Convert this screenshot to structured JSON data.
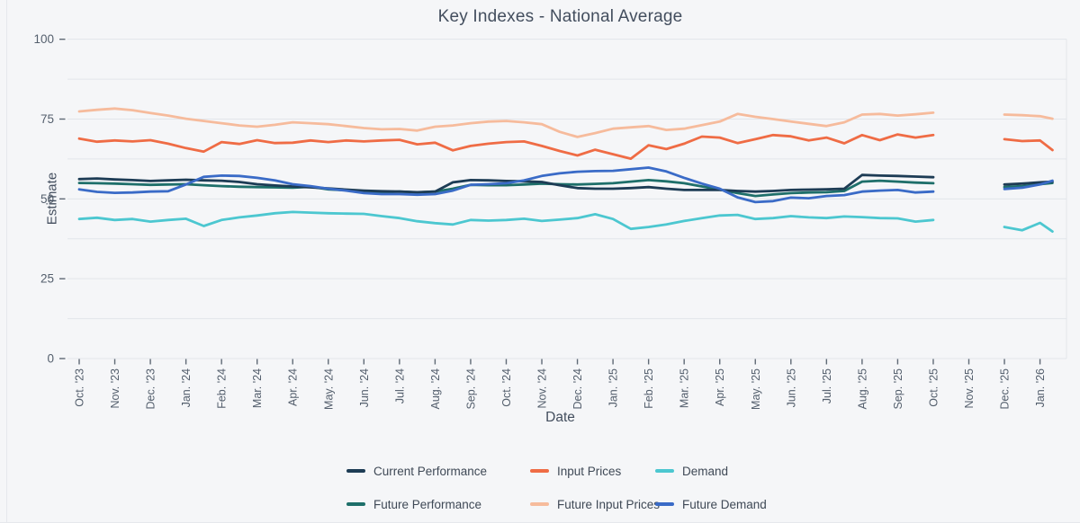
{
  "title": "Key Indexes - National Average",
  "axes": {
    "y_label": "Estimate",
    "x_label": "Date",
    "y_ticks": [
      0,
      25,
      50,
      75,
      100
    ],
    "y_minor_gridline_step": 12.5,
    "ylim": [
      0,
      100
    ],
    "x_tick_labels": [
      "Oct. '23",
      "Nov. '23",
      "Dec. '23",
      "Jan. '24",
      "Feb. '24",
      "Mar. '24",
      "Apr. '24",
      "May. '24",
      "Jun. '24",
      "Jul. '24",
      "Aug. '24",
      "Sep. '24",
      "Oct. '24",
      "Nov. '24",
      "Dec. '24",
      "Jan. '25",
      "Feb. '25",
      "Mar. '25",
      "Apr. '25",
      "May. '25",
      "Jun. '25",
      "Jul. '25",
      "Aug. '25",
      "Sep. '25",
      "Oct. '25",
      "Nov. '25",
      "Dec. '25",
      "Jan. '26"
    ]
  },
  "legend": {
    "rows": [
      [
        "current_performance",
        "input_prices",
        "demand"
      ],
      [
        "future_performance",
        "future_input_prices",
        "future_demand"
      ]
    ]
  },
  "colors": {
    "background": "#f5f6f8",
    "gridline": "#e2e5ea",
    "tick": "#5f6975",
    "axis_text": "#545f6d",
    "title_text": "#434e5e",
    "legend_text": "#3f4956"
  },
  "chart_data": {
    "type": "line",
    "title": "Key Indexes - National Average",
    "xlabel": "Date",
    "ylabel": "Estimate",
    "ylim": [
      0,
      100
    ],
    "grid": true,
    "legend_position": "bottom",
    "x_unit": "months since Oct. '23 (half-month sampling)",
    "gap_note": "no data around Nov. '25 — lines break between Oct. '25 and Dec. '25",
    "x_main": [
      0,
      0.5,
      1,
      1.5,
      2,
      2.5,
      3,
      3.5,
      4,
      4.5,
      5,
      5.5,
      6,
      6.5,
      7,
      7.5,
      8,
      8.5,
      9,
      9.5,
      10,
      10.5,
      11,
      11.5,
      12,
      12.5,
      13,
      13.5,
      14,
      14.5,
      15,
      15.5,
      16,
      16.5,
      17,
      17.5,
      18,
      18.5,
      19,
      19.5,
      20,
      20.5,
      21,
      21.5,
      22,
      22.5,
      23,
      23.5,
      24
    ],
    "x_tail": [
      26,
      26.5,
      27,
      27.35
    ],
    "series": [
      {
        "id": "future_input_prices",
        "name": "Future Input Prices",
        "color": "#f6bb9c",
        "main": [
          77.4,
          77.9,
          78.3,
          77.8,
          76.9,
          76.1,
          75.1,
          74.4,
          73.7,
          73.0,
          72.6,
          73.2,
          74.0,
          73.7,
          73.4,
          72.8,
          72.2,
          71.8,
          71.9,
          71.4,
          72.6,
          73.0,
          73.7,
          74.2,
          74.4,
          74.0,
          73.4,
          71.0,
          69.4,
          70.6,
          72.0,
          72.4,
          72.8,
          71.6,
          72.0,
          73.1,
          74.2,
          76.6,
          75.7,
          75.0,
          74.2,
          73.5,
          72.8,
          74.0,
          76.4,
          76.6,
          76.1,
          76.5,
          77.0
        ],
        "tail": [
          76.4,
          76.2,
          75.9,
          75.1
        ]
      },
      {
        "id": "input_prices",
        "name": "Input Prices",
        "color": "#ef6c45",
        "main": [
          68.9,
          67.9,
          68.3,
          68.0,
          68.4,
          67.3,
          65.9,
          64.8,
          67.8,
          67.2,
          68.4,
          67.5,
          67.6,
          68.3,
          67.8,
          68.3,
          68.0,
          68.3,
          68.5,
          67.1,
          67.6,
          65.2,
          66.6,
          67.3,
          67.8,
          68.0,
          66.6,
          65.0,
          63.6,
          65.4,
          64.0,
          62.6,
          66.8,
          65.6,
          67.3,
          69.5,
          69.2,
          67.5,
          68.7,
          70.0,
          69.6,
          68.3,
          69.2,
          67.4,
          70.0,
          68.4,
          70.2,
          69.2,
          70.0
        ],
        "tail": [
          68.7,
          68.1,
          68.3,
          65.3
        ]
      },
      {
        "id": "demand",
        "name": "Demand",
        "color": "#4cc7d0",
        "main": [
          43.7,
          44.1,
          43.4,
          43.7,
          42.9,
          43.4,
          43.8,
          41.5,
          43.4,
          44.2,
          44.8,
          45.5,
          45.9,
          45.7,
          45.5,
          45.4,
          45.3,
          44.6,
          44.0,
          43.0,
          42.4,
          42.0,
          43.4,
          43.2,
          43.4,
          43.8,
          43.1,
          43.5,
          44.0,
          45.2,
          43.7,
          40.6,
          41.2,
          42.0,
          43.1,
          44.0,
          44.8,
          45.0,
          43.7,
          44.0,
          44.6,
          44.2,
          44.0,
          44.5,
          44.3,
          44.0,
          43.9,
          42.9,
          43.4
        ],
        "tail": [
          41.2,
          40.2,
          42.5,
          39.8
        ]
      },
      {
        "id": "future_performance",
        "name": "Future Performance",
        "color": "#1e6f6a",
        "main": [
          55.0,
          54.9,
          54.8,
          54.6,
          54.4,
          54.5,
          54.6,
          54.3,
          54.0,
          53.8,
          53.7,
          53.6,
          53.5,
          53.8,
          53.0,
          52.7,
          52.4,
          52.0,
          52.3,
          52.0,
          52.3,
          53.2,
          54.4,
          54.3,
          54.3,
          54.5,
          54.8,
          54.6,
          54.5,
          54.7,
          54.9,
          55.4,
          55.9,
          55.5,
          54.9,
          53.9,
          52.9,
          51.8,
          50.9,
          51.4,
          51.8,
          52.0,
          52.1,
          52.5,
          55.4,
          55.7,
          55.4,
          55.1,
          54.9
        ],
        "tail": [
          53.7,
          54.0,
          54.6,
          55.0
        ]
      },
      {
        "id": "current_performance",
        "name": "Current Performance",
        "color": "#1d3c55",
        "main": [
          56.2,
          56.4,
          56.1,
          55.9,
          55.6,
          55.8,
          56.0,
          55.8,
          55.7,
          55.3,
          54.6,
          54.2,
          53.9,
          53.6,
          53.3,
          52.9,
          52.6,
          52.4,
          52.3,
          52.1,
          52.3,
          55.2,
          55.9,
          55.8,
          55.6,
          55.5,
          55.3,
          54.3,
          53.4,
          53.2,
          53.2,
          53.4,
          53.7,
          53.2,
          52.8,
          52.8,
          52.8,
          52.5,
          52.3,
          52.5,
          52.8,
          52.9,
          53.0,
          53.2,
          57.5,
          57.3,
          57.2,
          57.0,
          56.8
        ],
        "tail": [
          54.5,
          54.8,
          55.2,
          55.4
        ]
      },
      {
        "id": "future_demand",
        "name": "Future Demand",
        "color": "#3a6bc7",
        "main": [
          53.0,
          52.2,
          51.9,
          52.0,
          52.3,
          52.4,
          54.5,
          56.9,
          57.3,
          57.2,
          56.6,
          55.8,
          54.6,
          54.0,
          53.2,
          52.6,
          51.8,
          51.5,
          51.5,
          51.3,
          51.5,
          52.6,
          54.4,
          54.6,
          54.9,
          55.8,
          57.2,
          58.0,
          58.5,
          58.7,
          58.8,
          59.3,
          59.8,
          58.6,
          56.6,
          54.8,
          53.2,
          50.5,
          49.0,
          49.3,
          50.4,
          50.2,
          50.9,
          51.2,
          52.3,
          52.6,
          52.8,
          52.0,
          52.3
        ],
        "tail": [
          53.1,
          53.5,
          54.5,
          55.7
        ]
      }
    ]
  }
}
